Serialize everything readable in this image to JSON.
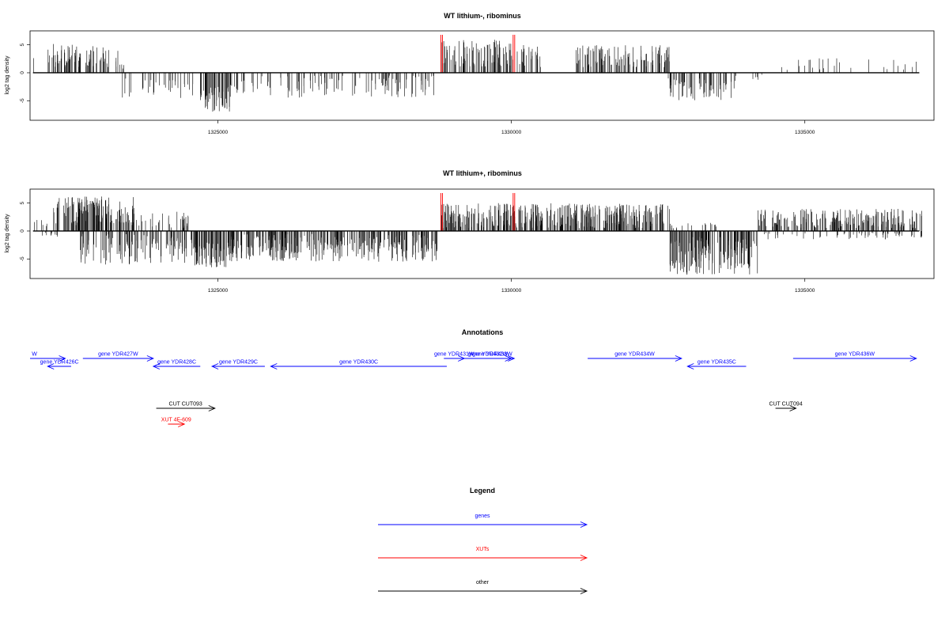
{
  "colors": {
    "gene": "#0000ff",
    "xut": "#ff0000",
    "other": "#000000",
    "track": "#000000",
    "highlight": "#ff0000"
  },
  "chart_data": [
    {
      "type": "bar",
      "title": "WT lithium-, ribominus",
      "ylabel": "log2 tag density",
      "xlim": [
        1321800,
        1337200
      ],
      "ylim": [
        -8.5,
        7.5
      ],
      "xticks": [
        1325000,
        1330000,
        1335000
      ],
      "xtick_labels": [
        "1325000",
        "1330000",
        "1335000"
      ],
      "yticks": [
        5,
        0,
        -5
      ],
      "ytick_labels": [
        "5",
        "0",
        "-5"
      ],
      "highlight_x": [
        1328800,
        1330030
      ],
      "highlight_y": 6.8,
      "segments": [
        {
          "from": 1321840,
          "to": 1321860,
          "min": 2.5,
          "max": 3.0,
          "sign": 1,
          "density": 1
        },
        {
          "from": 1322100,
          "to": 1322560,
          "min": 1.0,
          "max": 5.2,
          "sign": 1,
          "density": 1.0
        },
        {
          "from": 1322560,
          "to": 1323300,
          "min": 1.0,
          "max": 4.8,
          "sign": 1,
          "density": 0.8
        },
        {
          "from": 1323300,
          "to": 1323500,
          "min": 0.5,
          "max": 1.5,
          "sign": 1,
          "density": 0.3
        },
        {
          "from": 1323350,
          "to": 1324600,
          "min": 1.0,
          "max": 4.5,
          "sign": -1,
          "density": 0.35
        },
        {
          "from": 1324700,
          "to": 1325200,
          "min": 2.5,
          "max": 7.0,
          "sign": -1,
          "density": 1.4
        },
        {
          "from": 1325200,
          "to": 1328750,
          "min": 0.5,
          "max": 4.5,
          "sign": -1,
          "density": 0.45
        },
        {
          "from": 1328800,
          "to": 1330000,
          "min": 1.0,
          "max": 6.0,
          "sign": 1,
          "density": 1.0
        },
        {
          "from": 1330000,
          "to": 1330500,
          "min": 1.0,
          "max": 5.0,
          "sign": 1,
          "density": 0.7
        },
        {
          "from": 1331100,
          "to": 1332700,
          "min": 1.0,
          "max": 5.0,
          "sign": 1,
          "density": 0.9
        },
        {
          "from": 1332650,
          "to": 1333800,
          "min": 1.0,
          "max": 5.0,
          "sign": -1,
          "density": 0.7
        },
        {
          "from": 1333800,
          "to": 1334300,
          "min": 0.3,
          "max": 1.5,
          "sign": -1,
          "density": 0.2
        },
        {
          "from": 1334600,
          "to": 1336900,
          "min": 0.5,
          "max": 2.8,
          "sign": 1,
          "density": 0.15
        }
      ]
    },
    {
      "type": "bar",
      "title": "WT lithium+, ribominus",
      "ylabel": "log2 tag density",
      "xlim": [
        1321800,
        1337200
      ],
      "ylim": [
        -8.5,
        7.5
      ],
      "xticks": [
        1325000,
        1330000,
        1335000
      ],
      "xtick_labels": [
        "1325000",
        "1330000",
        "1335000"
      ],
      "yticks": [
        5,
        0,
        -5
      ],
      "ytick_labels": [
        "5",
        "0",
        "-5"
      ],
      "highlight_x": [
        1328800,
        1330030
      ],
      "highlight_y": 6.8,
      "segments": [
        {
          "from": 1321840,
          "to": 1322100,
          "min": 0.5,
          "max": 2.0,
          "sign": 1,
          "density": 0.3
        },
        {
          "from": 1321900,
          "to": 1322300,
          "min": 0.3,
          "max": 1.2,
          "sign": -1,
          "density": 0.3
        },
        {
          "from": 1322200,
          "to": 1323600,
          "min": 1.0,
          "max": 6.3,
          "sign": 1,
          "density": 1.4
        },
        {
          "from": 1323600,
          "to": 1324500,
          "min": 0.5,
          "max": 3.5,
          "sign": 1,
          "density": 0.5
        },
        {
          "from": 1322600,
          "to": 1324600,
          "min": 0.5,
          "max": 6.0,
          "sign": -1,
          "density": 0.8
        },
        {
          "from": 1324600,
          "to": 1325200,
          "min": 2.0,
          "max": 6.5,
          "sign": -1,
          "density": 1.5
        },
        {
          "from": 1325200,
          "to": 1328750,
          "min": 0.5,
          "max": 5.5,
          "sign": -1,
          "density": 1.2
        },
        {
          "from": 1328800,
          "to": 1332700,
          "min": 0.5,
          "max": 5.0,
          "sign": 1,
          "density": 1.3
        },
        {
          "from": 1332700,
          "to": 1334200,
          "min": 1.0,
          "max": 7.8,
          "sign": -1,
          "density": 1.3
        },
        {
          "from": 1332700,
          "to": 1333500,
          "min": 0.3,
          "max": 1.5,
          "sign": 1,
          "density": 0.3
        },
        {
          "from": 1334200,
          "to": 1337000,
          "min": 0.5,
          "max": 4.0,
          "sign": 1,
          "density": 1.0
        },
        {
          "from": 1334300,
          "to": 1337000,
          "min": 0.3,
          "max": 1.5,
          "sign": -1,
          "density": 0.3
        }
      ]
    }
  ],
  "annotations": {
    "title": "Annotations",
    "features": [
      {
        "label": "W",
        "type": "gene",
        "strand": "+",
        "from": 1321800,
        "to": 1322400,
        "row": 1,
        "label_x": 1321830
      },
      {
        "label": "gene YDR426C",
        "type": "gene",
        "strand": "-",
        "from": 1322100,
        "to": 1322500,
        "row": 2
      },
      {
        "label": "gene YDR427W",
        "type": "gene",
        "strand": "+",
        "from": 1322700,
        "to": 1323900,
        "row": 1
      },
      {
        "label": "gene YDR428C",
        "type": "gene",
        "strand": "-",
        "from": 1323900,
        "to": 1324700,
        "row": 2
      },
      {
        "label": "gene YDR429C",
        "type": "gene",
        "strand": "-",
        "from": 1324900,
        "to": 1325800,
        "row": 2
      },
      {
        "label": "gene YDR430C",
        "type": "gene",
        "strand": "-",
        "from": 1325900,
        "to": 1328900,
        "row": 2
      },
      {
        "label": "gene YDR431W",
        "type": "gene",
        "strand": "+",
        "from": 1328850,
        "to": 1329200,
        "row": 1
      },
      {
        "label": "gene YDR432W",
        "type": "gene",
        "strand": "+",
        "from": 1329200,
        "to": 1330000,
        "row": 1
      },
      {
        "label": "gene YDR433W",
        "type": "gene",
        "strand": "+",
        "from": 1329300,
        "to": 1330050,
        "row": 1
      },
      {
        "label": "gene YDR434W",
        "type": "gene",
        "strand": "+",
        "from": 1331300,
        "to": 1332900,
        "row": 1
      },
      {
        "label": "gene YDR435C",
        "type": "gene",
        "strand": "-",
        "from": 1333000,
        "to": 1334000,
        "row": 2
      },
      {
        "label": "gene YDR436W",
        "type": "gene",
        "strand": "+",
        "from": 1334800,
        "to": 1336900,
        "row": 1
      },
      {
        "label": "CUT CUT093",
        "type": "other",
        "strand": "+",
        "from": 1323950,
        "to": 1324950,
        "row": 3
      },
      {
        "label": "CUT CUT094",
        "type": "other",
        "strand": "+",
        "from": 1334500,
        "to": 1334850,
        "row": 3
      },
      {
        "label": "XUT 4F-609",
        "type": "xut",
        "strand": "+",
        "from": 1324150,
        "to": 1324430,
        "row": 4
      }
    ]
  },
  "legend": {
    "title": "Legend",
    "items": [
      {
        "label": "genes",
        "type": "gene"
      },
      {
        "label": "XUTs",
        "type": "xut"
      },
      {
        "label": "other",
        "type": "other"
      }
    ]
  }
}
